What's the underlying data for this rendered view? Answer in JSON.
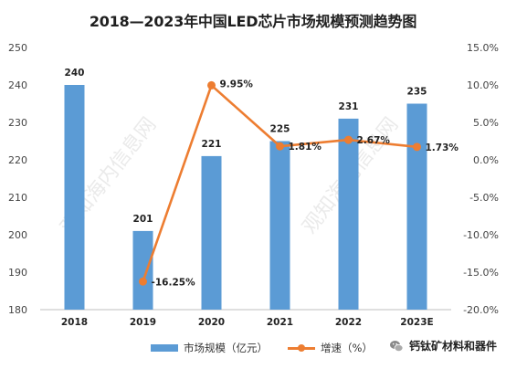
{
  "chart_data": {
    "type": "bar",
    "title": "2018—2023年中国LED芯片市场规模预测趋势图",
    "categories": [
      "2018",
      "2019",
      "2020",
      "2021",
      "2022",
      "2023E"
    ],
    "series": [
      {
        "name": "市场规模（亿元）",
        "type": "bar",
        "values": [
          240,
          201,
          221,
          225,
          231,
          235
        ],
        "labels": [
          "240",
          "201",
          "221",
          "225",
          "231",
          "235"
        ],
        "color": "#5b9bd5"
      },
      {
        "name": "增速（%）",
        "type": "line",
        "axis": "right",
        "values": [
          -16.25,
          9.95,
          1.81,
          2.67,
          1.73
        ],
        "x": [
          "2019",
          "2020",
          "2021",
          "2022",
          "2023E"
        ],
        "labels": [
          "-16.25%",
          "9.95%",
          "1.81%",
          "2.67%",
          "1.73%"
        ],
        "color": "#ed7d31"
      }
    ],
    "y_left": {
      "ylim": [
        180,
        250
      ],
      "ticks": [
        "180",
        "190",
        "200",
        "210",
        "220",
        "230",
        "240",
        "250"
      ]
    },
    "y_right": {
      "ylim": [
        -20,
        15
      ],
      "ticks": [
        "-20.0%",
        "-15.0%",
        "-10.0%",
        "-5.0%",
        "0.0%",
        "5.0%",
        "10.0%",
        "15.0%"
      ]
    },
    "grid": false,
    "legend": "bottom"
  },
  "watermark": "观知海内信息网",
  "brand": {
    "text": "钙钛矿材料和器件",
    "icon": "wechat-icon"
  }
}
